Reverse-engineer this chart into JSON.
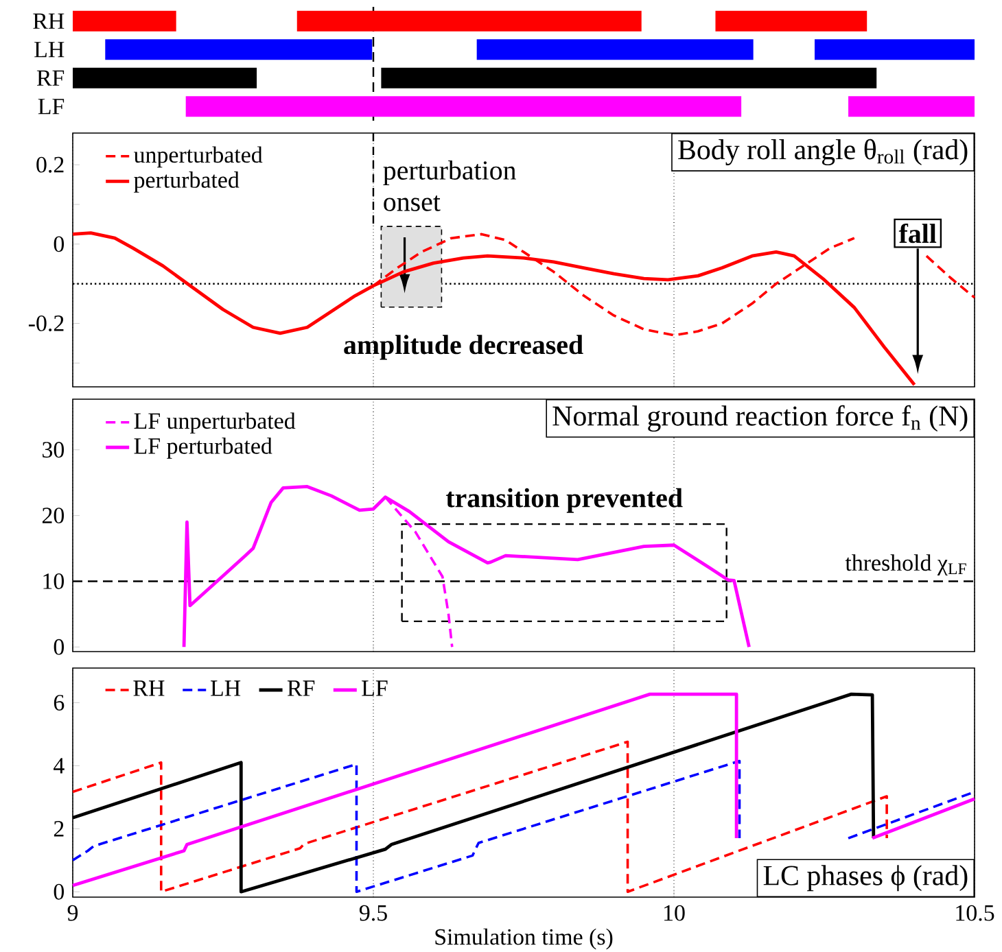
{
  "chart_data": [
    {
      "type": "bar",
      "orientation": "horizontal",
      "categories": [
        "RH",
        "LH",
        "RF",
        "LF"
      ],
      "xlim": [
        9,
        10.5
      ],
      "tick_labels": "y",
      "series": [
        {
          "base": [
            9.0,
            9.054,
            9.0,
            9.188
          ],
          "values": [
            0.172,
            0.444,
            0.306,
            0.924
          ],
          "colors": [
            "#ff0000",
            "#0000ff",
            "#000000",
            "#ff00ff"
          ]
        },
        {
          "base": [
            9.373,
            9.672,
            9.513,
            10.29
          ],
          "values": [
            0.573,
            0.46,
            0.824,
            0.21
          ],
          "colors": [
            "#ff0000",
            "#0000ff",
            "#000000",
            "#ff00ff"
          ]
        },
        {
          "base": [
            10.069,
            10.234,
            null,
            null
          ],
          "values": [
            0.252,
            0.266,
            null,
            null
          ],
          "colors": [
            "#ff0000",
            "#0000ff",
            "#000000",
            "#ff00ff"
          ]
        }
      ],
      "ref_lines": [
        {
          "axis": "x",
          "value": 9.5,
          "line_style": "dashed"
        }
      ]
    },
    {
      "type": "line",
      "title": "Body roll angle θ$_{roll}$ (rad)",
      "xlim": [
        9,
        10.5
      ],
      "xticks": [
        9,
        9.5,
        10,
        10.5
      ],
      "ylim": [
        -0.36,
        0.28
      ],
      "yticks": [
        {
          "value": -0.3,
          "label": null
        },
        -0.2,
        {
          "value": -0.1,
          "label": null
        },
        0,
        {
          "value": 0.1,
          "label": null
        },
        0.2
      ],
      "grid": "x",
      "legend": "top left",
      "tick_labels": "y",
      "series": [
        {
          "name": "unperturbated",
          "color": "#ff0000",
          "line_style": "dashed",
          "x": [
            9.5,
            9.54,
            9.58,
            9.63,
            9.68,
            9.72,
            9.76,
            9.8,
            9.85,
            9.9,
            9.95,
            10.0,
            10.04,
            10.08,
            10.13,
            10.17,
            10.22,
            10.26,
            10.3,
            10.34,
            10.38,
            10.42,
            10.46,
            10.5
          ],
          "values": [
            -0.105,
            -0.06,
            -0.02,
            0.015,
            0.025,
            0.01,
            -0.03,
            -0.07,
            -0.13,
            -0.18,
            -0.215,
            -0.23,
            -0.22,
            -0.2,
            -0.15,
            -0.1,
            -0.05,
            -0.01,
            0.015,
            null,
            null,
            -0.03,
            -0.085,
            -0.135
          ]
        },
        {
          "name": "perturbated",
          "color": "#ff0000",
          "line_style": "solid",
          "x": [
            9.0,
            9.03,
            9.07,
            9.1,
            9.15,
            9.2,
            9.25,
            9.3,
            9.345,
            9.39,
            9.43,
            9.47,
            9.5,
            9.55,
            9.6,
            9.65,
            9.69,
            9.75,
            9.8,
            9.85,
            9.9,
            9.95,
            9.99,
            10.04,
            10.08,
            10.13,
            10.17,
            10.2,
            10.25,
            10.3,
            10.35,
            10.4
          ],
          "values": [
            0.025,
            0.028,
            0.015,
            -0.01,
            -0.055,
            -0.11,
            -0.165,
            -0.21,
            -0.225,
            -0.21,
            -0.17,
            -0.13,
            -0.105,
            -0.07,
            -0.048,
            -0.035,
            -0.03,
            -0.035,
            -0.045,
            -0.06,
            -0.075,
            -0.087,
            -0.09,
            -0.08,
            -0.06,
            -0.03,
            -0.02,
            -0.03,
            -0.09,
            -0.16,
            -0.26,
            -0.355
          ]
        }
      ],
      "ref_lines": [
        {
          "axis": "y",
          "value": -0.1,
          "line_style": "dotted"
        }
      ],
      "annotations": [
        "perturbation onset",
        "amplitude decreased",
        "fall"
      ]
    },
    {
      "type": "line",
      "title": "Normal ground reaction force f$_{n}$ (N)",
      "xlim": [
        9,
        10.5
      ],
      "xticks": [
        9,
        9.5,
        10,
        10.5
      ],
      "ylim": [
        -0.7,
        37.7
      ],
      "yticks": [
        0,
        10,
        20,
        30
      ],
      "grid": "x",
      "legend": "top left",
      "tick_labels": "y",
      "series": [
        {
          "name": "LF unperturbated",
          "color": "#ff00ff",
          "line_style": "dashed",
          "x": [
            9.52,
            9.57,
            9.615,
            9.625,
            9.631
          ],
          "values": [
            22.8,
            17.5,
            10.7,
            5,
            0
          ]
        },
        {
          "name": "LF perturbated",
          "color": "#ff00ff",
          "line_style": "solid",
          "x": [
            9.185,
            9.19,
            9.195,
            9.24,
            9.286,
            9.3,
            9.33,
            9.35,
            9.39,
            9.43,
            9.477,
            9.5,
            9.52,
            9.56,
            9.625,
            9.69,
            9.695,
            9.72,
            9.84,
            9.95,
            10.0,
            10.06,
            10.09,
            10.1,
            10.125
          ],
          "values": [
            0,
            19,
            6.3,
            10,
            13.8,
            15,
            22,
            24.2,
            24.4,
            23,
            20.8,
            21,
            22.8,
            20.6,
            16,
            12.8,
            12.9,
            13.9,
            13.3,
            15.3,
            15.5,
            12,
            10.2,
            10.1,
            0
          ]
        }
      ],
      "ref_lines": [
        {
          "axis": "y",
          "value": 10,
          "line_style": "dashed",
          "label": "threshold χ$_{LF}$"
        }
      ],
      "annotations": [
        "transition prevented"
      ]
    },
    {
      "type": "line",
      "title": "LC phases ϕ (rad)",
      "xlabel": "Simulation time (s)",
      "xlim": [
        9,
        10.5
      ],
      "xticks": [
        9,
        9.5,
        10,
        10.5
      ],
      "ylim": [
        -0.17,
        7.1
      ],
      "yticks": [
        0,
        2,
        4,
        6
      ],
      "grid": "x",
      "legend": "top left",
      "series": [
        {
          "name": "RH",
          "color": "#ff0000",
          "line_style": "dashed",
          "x": [
            9.0,
            9.147,
            9.147,
            9.378,
            9.385,
            9.923,
            9.923,
            10.354,
            10.354
          ],
          "values": [
            3.17,
            4.1,
            0,
            1.38,
            1.52,
            4.76,
            0,
            3.03,
            1.7
          ]
        },
        {
          "name": "LH",
          "color": "#0000ff",
          "line_style": "dashed",
          "x": [
            9.0,
            9.025,
            9.035,
            9.472,
            9.472,
            9.665,
            9.675,
            10.109,
            10.109,
            10.2,
            10.29,
            10.5
          ],
          "values": [
            1.0,
            1.3,
            1.45,
            4.05,
            0,
            1.15,
            1.55,
            4.15,
            1.7,
            null,
            1.7,
            3.17
          ]
        },
        {
          "name": "RF",
          "color": "#000000",
          "line_style": "solid",
          "x": [
            9.0,
            9.28,
            9.28,
            9.52,
            9.53,
            10.295,
            10.33,
            10.332
          ],
          "values": [
            2.35,
            4.1,
            0,
            1.35,
            1.5,
            6.27,
            6.25,
            1.7
          ]
        },
        {
          "name": "LF",
          "color": "#ff00ff",
          "line_style": "solid",
          "x": [
            9.0,
            9.185,
            9.19,
            9.96,
            10.104,
            10.104,
            10.2,
            10.33,
            10.5
          ],
          "values": [
            0.2,
            1.3,
            1.5,
            6.27,
            6.27,
            1.7,
            null,
            1.7,
            2.95
          ]
        }
      ]
    }
  ]
}
